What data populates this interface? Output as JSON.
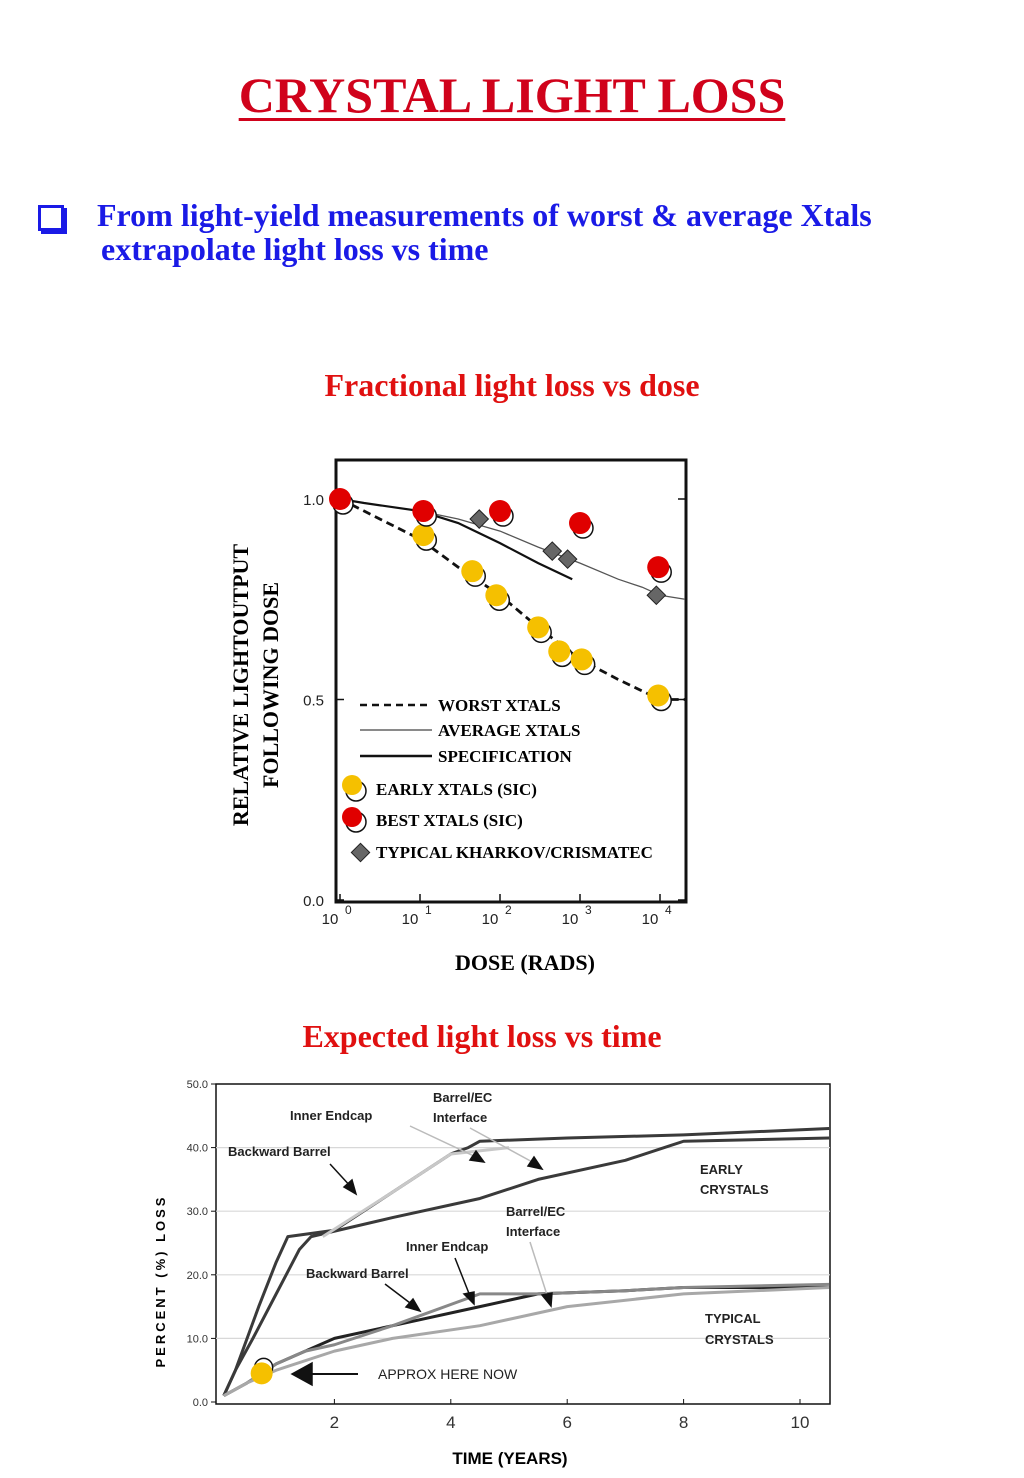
{
  "page": {
    "title": "CRYSTAL  LIGHT LOSS",
    "bullet": {
      "icon": "checkbox-square-icon",
      "line1": "From light-yield measurements of worst & average Xtals",
      "line2": "extrapolate light loss vs time"
    },
    "subtitle1": "Fractional light loss vs dose",
    "subtitle2": "Expected light loss vs time"
  },
  "colors": {
    "title": "#d0021b",
    "bullet": "#1a1ae6",
    "yellow": "#f5c000",
    "red": "#e00000",
    "diamond": "#666666"
  },
  "chart_data": [
    {
      "type": "scatter",
      "xlabel": "DOSE (RADS)",
      "ylabel_line1": "RELATIVE  LIGHTOUTPUT",
      "ylabel_line2": "FOLLOWING DOSE",
      "xscale": "log",
      "xlim": [
        1,
        10000
      ],
      "ylim": [
        0,
        1.0
      ],
      "x_ticks": [
        {
          "value": 1,
          "base": "10",
          "exp": "0"
        },
        {
          "value": 10,
          "base": "10",
          "exp": "1"
        },
        {
          "value": 100,
          "base": "10",
          "exp": "2"
        },
        {
          "value": 1000,
          "base": "10",
          "exp": "3"
        },
        {
          "value": 10000,
          "base": "10",
          "exp": "4"
        }
      ],
      "y_ticks": [
        {
          "value": 0,
          "label": "0.0"
        },
        {
          "value": 0.5,
          "label": "0.5"
        },
        {
          "value": 1.0,
          "label": "1.0"
        }
      ],
      "legend_position": "bottom-left",
      "lines": [
        {
          "name": "WORST XTALS",
          "style": "dashed",
          "x": [
            1,
            2,
            5,
            10,
            30,
            100,
            300,
            1000,
            3000,
            10000,
            15000
          ],
          "y": [
            1.0,
            0.97,
            0.93,
            0.9,
            0.83,
            0.76,
            0.68,
            0.6,
            0.55,
            0.5,
            0.5
          ]
        },
        {
          "name": "AVERAGE XTALS",
          "style": "thin",
          "x": [
            1,
            2,
            10,
            30,
            100,
            300,
            1000,
            3000,
            6000,
            10000,
            15000
          ],
          "y": [
            1.0,
            0.99,
            0.97,
            0.95,
            0.92,
            0.88,
            0.84,
            0.8,
            0.78,
            0.76,
            0.75
          ]
        },
        {
          "name": "SPECIFICATION",
          "style": "thick",
          "x": [
            1,
            2,
            10,
            30,
            100,
            300,
            800
          ],
          "y": [
            1.0,
            0.99,
            0.97,
            0.94,
            0.89,
            0.84,
            0.8
          ]
        }
      ],
      "series": [
        {
          "name": "EARLY XTALS (SIC)",
          "marker": "circle",
          "color": "#f5c000",
          "x": [
            11,
            45,
            90,
            300,
            550,
            1050,
            9500
          ],
          "y": [
            0.91,
            0.82,
            0.76,
            0.68,
            0.62,
            0.6,
            0.51
          ]
        },
        {
          "name": "BEST XTALS (SIC)",
          "marker": "circle",
          "color": "#e00000",
          "x": [
            1,
            11,
            100,
            1000,
            9500
          ],
          "y": [
            1.0,
            0.97,
            0.97,
            0.94,
            0.83
          ]
        },
        {
          "name": "TYPICAL KHARKOV/CRISMATEC",
          "marker": "diamond",
          "color": "#666666",
          "x": [
            55,
            450,
            700,
            9000
          ],
          "y": [
            0.95,
            0.87,
            0.85,
            0.76
          ]
        }
      ]
    },
    {
      "type": "line",
      "xlabel": "TIME (YEARS)",
      "ylabel": "PERCENT (%) LOSS",
      "xlim": [
        0,
        10.5
      ],
      "ylim": [
        0,
        50
      ],
      "x_ticks": [
        {
          "value": 2,
          "label": "2"
        },
        {
          "value": 4,
          "label": "4"
        },
        {
          "value": 6,
          "label": "6"
        },
        {
          "value": 8,
          "label": "8"
        },
        {
          "value": 10,
          "label": "10"
        }
      ],
      "y_ticks": [
        {
          "value": 0,
          "label": "0.0"
        },
        {
          "value": 10,
          "label": "10.0"
        },
        {
          "value": 20,
          "label": "20.0"
        },
        {
          "value": 30,
          "label": "30.0"
        },
        {
          "value": 40,
          "label": "40.0"
        },
        {
          "value": 50,
          "label": "50.0"
        }
      ],
      "groups": [
        {
          "name": "EARLY CRYSTALS"
        },
        {
          "name": "TYPICAL CRYSTALS"
        }
      ],
      "series": [
        {
          "group": "EARLY CRYSTALS",
          "color": "#3a3a3a",
          "x": [
            0.1,
            0.3,
            0.5,
            0.7,
            1.0,
            1.2,
            2.0,
            3.0,
            4.0,
            4.3,
            4.5,
            6.0,
            8.0,
            10.5
          ],
          "y": [
            1,
            5,
            10,
            15,
            22,
            26,
            27,
            33,
            39,
            40,
            41,
            41.5,
            42,
            43
          ]
        },
        {
          "group": "EARLY CRYSTALS",
          "color": "#3a3a3a",
          "x": [
            0.1,
            0.3,
            0.6,
            1.0,
            1.4,
            1.6,
            3.0,
            4.5,
            5.5,
            7.0,
            8.0,
            10.5
          ],
          "y": [
            1,
            5,
            10,
            17,
            24,
            26,
            29,
            32,
            35,
            38,
            41,
            41.5
          ]
        },
        {
          "group": "EARLY CRYSTALS",
          "color": "#c8c8c8",
          "x": [
            1.8,
            3.0,
            4.0,
            5.0
          ],
          "y": [
            26,
            33,
            39,
            40
          ]
        },
        {
          "group": "TYPICAL CRYSTALS",
          "color": "#222222",
          "x": [
            0.1,
            0.5,
            1.0,
            1.5,
            2.0,
            3.0,
            4.5,
            5.5,
            7.0,
            8.0,
            10.5
          ],
          "y": [
            1,
            3,
            6,
            8,
            10,
            12,
            15,
            17,
            17.5,
            18,
            18
          ]
        },
        {
          "group": "TYPICAL CRYSTALS",
          "color": "#888888",
          "x": [
            0.1,
            0.5,
            1.0,
            1.5,
            2.0,
            3.0,
            4.5,
            5.5,
            7.0,
            8.0,
            10.5
          ],
          "y": [
            1,
            3,
            6,
            8,
            9,
            12,
            17,
            17,
            17.5,
            18,
            18.5
          ]
        },
        {
          "group": "TYPICAL CRYSTALS",
          "color": "#a8a8a8",
          "x": [
            0.1,
            0.5,
            1.0,
            2.0,
            3.0,
            4.5,
            6.0,
            8.0,
            10.5
          ],
          "y": [
            1,
            3,
            5,
            8,
            10,
            12,
            15,
            17,
            18
          ]
        }
      ],
      "annotations": [
        {
          "text": "Inner Endcap"
        },
        {
          "text_line1": "Barrel/EC",
          "text_line2": "Interface"
        },
        {
          "text": "Backward Barrel"
        },
        {
          "text_line1": "EARLY",
          "text_line2": "CRYSTALS"
        },
        {
          "text_line1": "Barrel/EC",
          "text_line2": "Interface"
        },
        {
          "text": "Inner Endcap"
        },
        {
          "text": "Backward Barrel"
        },
        {
          "text_line1": "TYPICAL",
          "text_line2": "CRYSTALS"
        },
        {
          "text": "APPROX HERE NOW"
        }
      ],
      "marker_now": {
        "x": 0.75,
        "y": 4.5,
        "color": "#f5c000"
      }
    }
  ]
}
